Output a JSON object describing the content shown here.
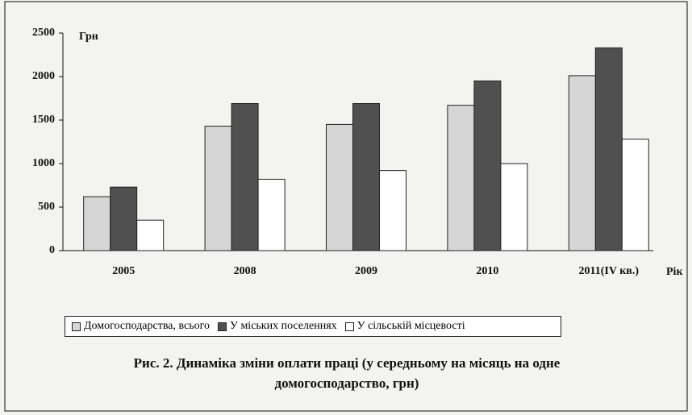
{
  "chart_data": {
    "type": "bar",
    "title": "Рис. 2. Динаміка зміни оплати праці (у середньому на місяць на одне домогосподарство, грн)",
    "y_label": "Грн",
    "x_label": "Рік",
    "categories": [
      "2005",
      "2008",
      "2009",
      "2010",
      "2011(IV кв.)"
    ],
    "series": [
      {
        "name": "Домогосподарства, всього",
        "color": "#d6d6d6",
        "values": [
          620,
          1430,
          1450,
          1670,
          2010
        ]
      },
      {
        "name": "У міських поселеннях",
        "color": "#505050",
        "values": [
          730,
          1690,
          1690,
          1950,
          2330
        ]
      },
      {
        "name": "У сільській місцевості",
        "color": "#ffffff",
        "values": [
          350,
          820,
          920,
          1000,
          1280
        ]
      }
    ],
    "ylim": [
      0,
      2500
    ],
    "yticks": [
      0,
      500,
      1000,
      1500,
      2000,
      2500
    ],
    "grid": false,
    "legend": "bottom"
  }
}
